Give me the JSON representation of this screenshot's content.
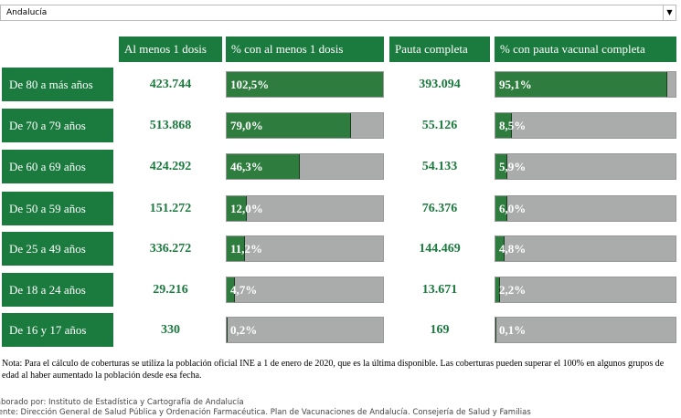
{
  "filter": "Andalucía",
  "columns": [
    "Al menos 1 dosis",
    "% con al menos 1 dosis",
    "Pauta completa",
    "% con pauta vacunal completa"
  ],
  "rows": [
    {
      "label": "De 80 a más años",
      "first_dose": "423.744",
      "first_pct": 102.5,
      "first_pct_label": "102,5%",
      "complete": "393.094",
      "complete_pct": 95.1,
      "complete_pct_label": "95,1%"
    },
    {
      "label": "De 70 a 79 años",
      "first_dose": "513.868",
      "first_pct": 79.0,
      "first_pct_label": "79,0%",
      "complete": "55.126",
      "complete_pct": 8.5,
      "complete_pct_label": "8,5%"
    },
    {
      "label": "De 60 a 69 años",
      "first_dose": "424.292",
      "first_pct": 46.3,
      "first_pct_label": "46,3%",
      "complete": "54.133",
      "complete_pct": 5.9,
      "complete_pct_label": "5,9%"
    },
    {
      "label": "De 50 a 59 años",
      "first_dose": "151.272",
      "first_pct": 12.0,
      "first_pct_label": "12,0%",
      "complete": "76.376",
      "complete_pct": 6.0,
      "complete_pct_label": "6,0%"
    },
    {
      "label": "De 25 a 49 años",
      "first_dose": "336.272",
      "first_pct": 11.2,
      "first_pct_label": "11,2%",
      "complete": "144.469",
      "complete_pct": 4.8,
      "complete_pct_label": "4,8%"
    },
    {
      "label": "De 18 a 24 años",
      "first_dose": "29.216",
      "first_pct": 4.7,
      "first_pct_label": "4,7%",
      "complete": "13.671",
      "complete_pct": 2.2,
      "complete_pct_label": "2,2%"
    },
    {
      "label": "De 16 y 17 años",
      "first_dose": "330",
      "first_pct": 0.2,
      "first_pct_label": "0,2%",
      "complete": "169",
      "complete_pct": 0.1,
      "complete_pct_label": "0,1%"
    }
  ],
  "note": "Nota: Para el cálculo de coberturas se utiliza la población oficial INE a 1 de enero de 2020, que es la última disponible. Las coberturas pueden superar el 100% en algunos grupos de edad al haber aumentado la población desde esa fecha.",
  "footer": [
    "Elaborado por: Instituto de Estadística y Cartografía de Andalucía",
    "Fuente: Dirección General de Salud Pública y Ordenación Farmacéutica. Plan de Vacunaciones de Andalucía. Consejería de Salud y Familias"
  ]
}
